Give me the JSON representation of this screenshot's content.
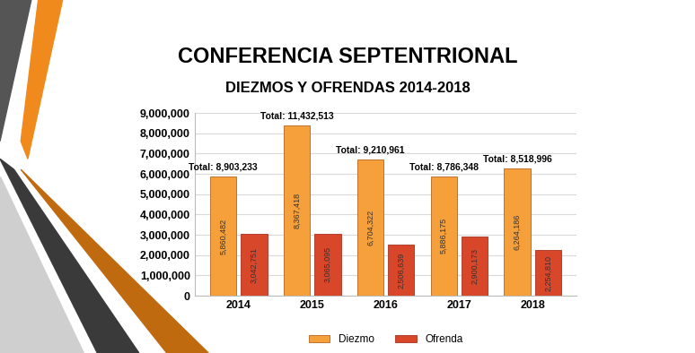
{
  "chart_data": {
    "type": "bar",
    "title": "CONFERENCIA SEPTENTRIONAL",
    "subtitle": "DIEZMOS Y OFRENDAS 2014-2018",
    "categories": [
      "2014",
      "2015",
      "2016",
      "2017",
      "2018"
    ],
    "series": [
      {
        "name": "Diezmo",
        "color": "#f5a03a",
        "values": [
          5860482,
          8367418,
          6704322,
          5886175,
          6264186
        ],
        "value_labels": [
          "5,860,482",
          "8,367,418",
          "6,704,322",
          "5,886,175",
          "6,264,186"
        ]
      },
      {
        "name": "Ofrenda",
        "color": "#d9472b",
        "values": [
          3042751,
          3065095,
          2506639,
          2900173,
          2254810
        ],
        "value_labels": [
          "3,042,751",
          "3,065,095",
          "2,506,639",
          "2,900,173",
          "2,254,810"
        ]
      }
    ],
    "annotations": [
      "Total: 8,903,233",
      "Total: 11,432,513",
      "Total: 9,210,961",
      "Total: 8,786,348",
      "Total: 8,518,996"
    ],
    "ylim": [
      0,
      9000000
    ],
    "yticks": [
      0,
      {
        "value": 1000000,
        "label": "1,000,000"
      },
      {
        "value": 2000000,
        "label": "2,000,000"
      },
      {
        "value": 3000000,
        "label": "3,000,000"
      },
      {
        "value": 4000000,
        "label": "4,000,000"
      },
      {
        "value": 5000000,
        "label": "5,000,000"
      },
      {
        "value": 6000000,
        "label": "6,000,000"
      },
      {
        "value": 7000000,
        "label": "7,000,000"
      },
      {
        "value": 8000000,
        "label": "8,000,000"
      },
      {
        "value": 9000000,
        "label": "9,000,000"
      }
    ],
    "grid": true,
    "data_labels": true,
    "legend": "lower center"
  }
}
